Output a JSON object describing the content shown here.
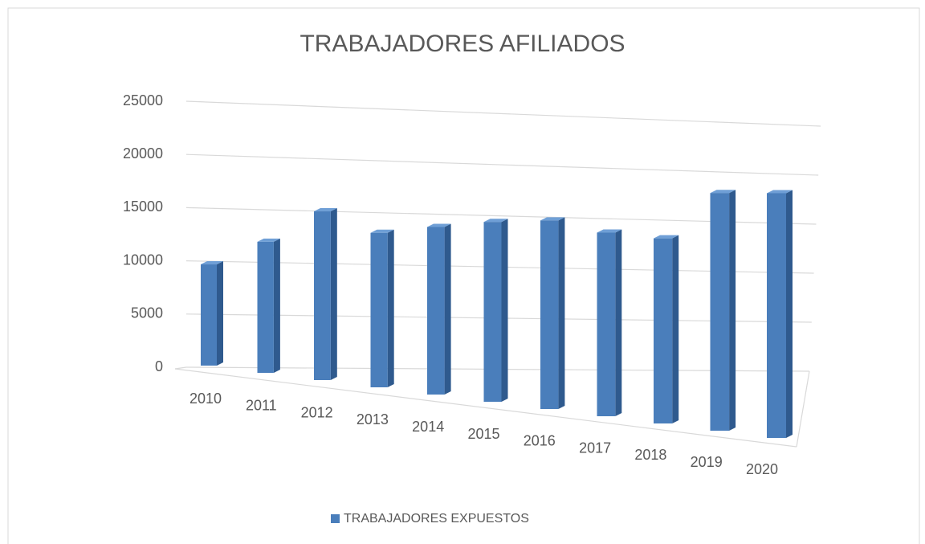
{
  "chart_data": {
    "type": "bar3d",
    "title": "TRABAJADORES AFILIADOS",
    "categories": [
      "2010",
      "2011",
      "2012",
      "2013",
      "2014",
      "2015",
      "2016",
      "2017",
      "2018",
      "2019",
      "2020"
    ],
    "series": [
      {
        "name": "TRABAJADORES EXPUESTOS",
        "color": "#4a7ebb",
        "values": [
          9400,
          11700,
          14500,
          12800,
          13400,
          13900,
          14100,
          13300,
          13000,
          16200,
          16200
        ]
      }
    ],
    "ylim": [
      0,
      25000
    ],
    "yticks": [
      0,
      5000,
      10000,
      15000,
      20000,
      25000
    ],
    "grid": true,
    "legend": "bottom"
  }
}
